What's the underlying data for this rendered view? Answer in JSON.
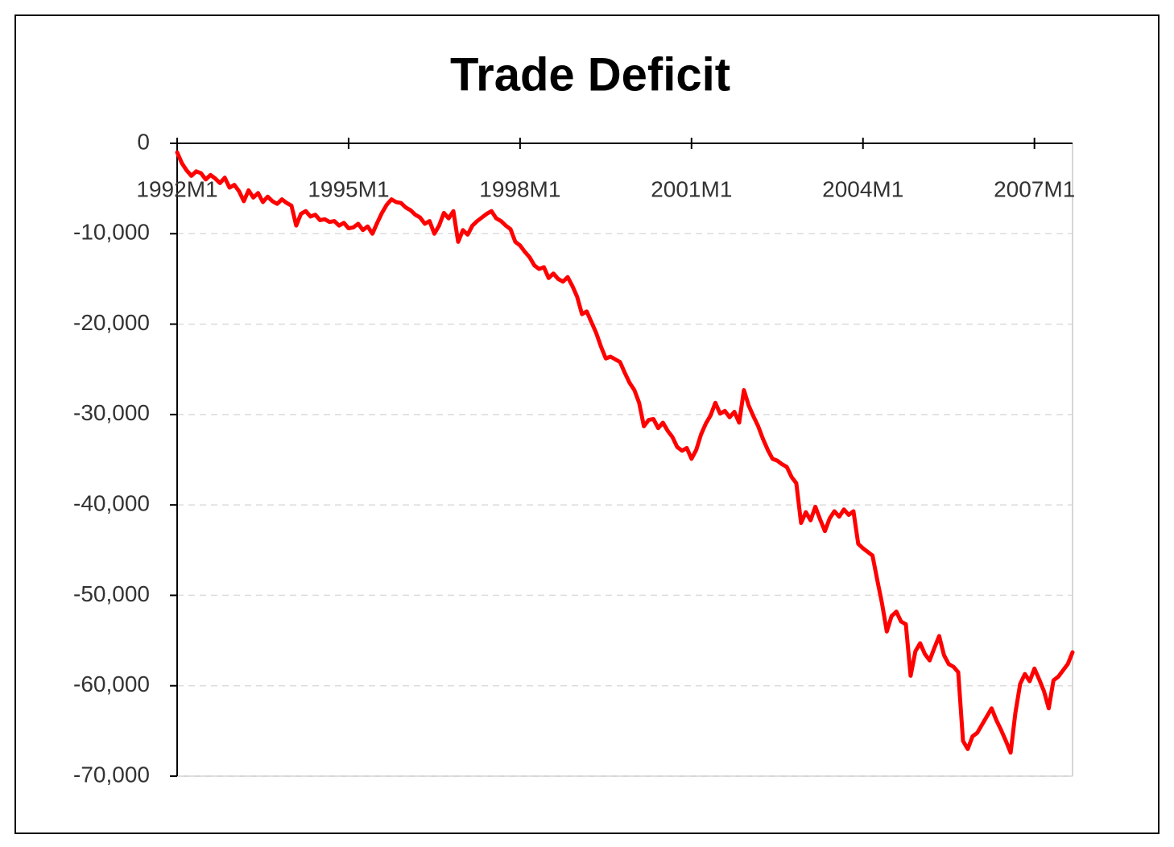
{
  "chart_data": {
    "type": "line",
    "title": "Trade Deficit",
    "categories": [
      "1992M1",
      null,
      null,
      null,
      null,
      null,
      null,
      null,
      null,
      null,
      null,
      null,
      null,
      null,
      null,
      null,
      null,
      null,
      null,
      null,
      null,
      null,
      null,
      null,
      null,
      null,
      null,
      null,
      null,
      null,
      null,
      null,
      null,
      null,
      null,
      null,
      "1995M1",
      null,
      null,
      null,
      null,
      null,
      null,
      null,
      null,
      null,
      null,
      null,
      null,
      null,
      null,
      null,
      null,
      null,
      null,
      null,
      null,
      null,
      null,
      null,
      null,
      null,
      null,
      null,
      null,
      null,
      null,
      null,
      null,
      null,
      null,
      null,
      "1998M1",
      null,
      null,
      null,
      null,
      null,
      null,
      null,
      null,
      null,
      null,
      null,
      null,
      null,
      null,
      null,
      null,
      null,
      null,
      null,
      null,
      null,
      null,
      null,
      null,
      null,
      null,
      null,
      null,
      null,
      null,
      null,
      null,
      null,
      null,
      null,
      "2001M1",
      null,
      null,
      null,
      null,
      null,
      null,
      null,
      null,
      null,
      null,
      null,
      null,
      null,
      null,
      null,
      null,
      null,
      null,
      null,
      null,
      null,
      null,
      null,
      null,
      null,
      null,
      null,
      null,
      null,
      null,
      null,
      null,
      null,
      null,
      null,
      "2004M1",
      null,
      null,
      null,
      null,
      null,
      null,
      null,
      null,
      null,
      null,
      null,
      null,
      null,
      null,
      null,
      null,
      null,
      null,
      null,
      null,
      null,
      null,
      null,
      null,
      null,
      null,
      null,
      null,
      null,
      null,
      null,
      null,
      null,
      null,
      null,
      "2007M1",
      null,
      null,
      null,
      null,
      null,
      null,
      null,
      null
    ],
    "values": [
      -1000,
      -2200,
      -3000,
      -3600,
      -3100,
      -3300,
      -4000,
      -3500,
      -3900,
      -4400,
      -3800,
      -4900,
      -4600,
      -5300,
      -6400,
      -5200,
      -6000,
      -5500,
      -6500,
      -5900,
      -6400,
      -6700,
      -6200,
      -6600,
      -6900,
      -9100,
      -7800,
      -7500,
      -8100,
      -7900,
      -8500,
      -8400,
      -8700,
      -8600,
      -9100,
      -8800,
      -9400,
      -9300,
      -8900,
      -9600,
      -9200,
      -10000,
      -8800,
      -7700,
      -6800,
      -6200,
      -6500,
      -6600,
      -7100,
      -7400,
      -7900,
      -8200,
      -8900,
      -8600,
      -10000,
      -9100,
      -7700,
      -8300,
      -7500,
      -10900,
      -9600,
      -10100,
      -9100,
      -8600,
      -8200,
      -7800,
      -7500,
      -8300,
      -8600,
      -9100,
      -9500,
      -10900,
      -11300,
      -12000,
      -12600,
      -13500,
      -13900,
      -13700,
      -14900,
      -14400,
      -15000,
      -15300,
      -14800,
      -15800,
      -17000,
      -18900,
      -18600,
      -19800,
      -21000,
      -22500,
      -23800,
      -23600,
      -23900,
      -24200,
      -25400,
      -26500,
      -27300,
      -28700,
      -31300,
      -30600,
      -30500,
      -31500,
      -30900,
      -31800,
      -32500,
      -33600,
      -34000,
      -33700,
      -34900,
      -33900,
      -32200,
      -31000,
      -30100,
      -28700,
      -29900,
      -29600,
      -30300,
      -29700,
      -30900,
      -27300,
      -29000,
      -30200,
      -31300,
      -32700,
      -33900,
      -34900,
      -35100,
      -35500,
      -35800,
      -36900,
      -37600,
      -42000,
      -40800,
      -41700,
      -40200,
      -41600,
      -42900,
      -41500,
      -40700,
      -41300,
      -40500,
      -41100,
      -40700,
      -44300,
      -44800,
      -45200,
      -45600,
      -48300,
      -50900,
      -54000,
      -52300,
      -51800,
      -52900,
      -53200,
      -58900,
      -56200,
      -55300,
      -56500,
      -57200,
      -55800,
      -54500,
      -56600,
      -57600,
      -57900,
      -58500,
      -66100,
      -67000,
      -65600,
      -65200,
      -64300,
      -63400,
      -62500,
      -63800,
      -64900,
      -66100,
      -67400,
      -63000,
      -59800,
      -58700,
      -59500,
      -58100,
      -59300,
      -60600,
      -62500,
      -59400,
      -59000,
      -58300,
      -57600,
      -56300
    ],
    "color": "#ff0000",
    "ylim": [
      -70000,
      0
    ],
    "yticks": [
      0,
      {
        "value": -10000,
        "label": "-10,000"
      },
      {
        "value": -20000,
        "label": "-20,000"
      },
      {
        "value": -30000,
        "label": "-30,000"
      },
      {
        "value": -40000,
        "label": "-40,000"
      },
      {
        "value": -50000,
        "label": "-50,000"
      },
      {
        "value": -60000,
        "label": "-60,000"
      },
      {
        "value": -70000,
        "label": "-70,000"
      }
    ],
    "grid": true
  }
}
